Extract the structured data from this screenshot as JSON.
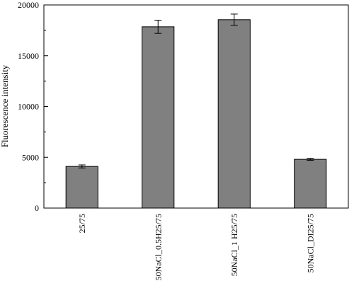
{
  "chart_data": {
    "type": "bar",
    "categories": [
      "25/75",
      "50NaCl_0.5H25/75",
      "50NaCl_1 H25/75",
      "50NaCl_DI25/75"
    ],
    "values": [
      4100,
      17850,
      18550,
      4800
    ],
    "errors": [
      150,
      650,
      550,
      100
    ],
    "title": "",
    "xlabel": "",
    "ylabel": "Fluorescence intensity",
    "ylim": [
      0,
      20000
    ],
    "yticks": [
      0,
      5000,
      10000,
      15000,
      20000
    ],
    "grid": false,
    "legend": "none",
    "bar_color": "#808080"
  }
}
